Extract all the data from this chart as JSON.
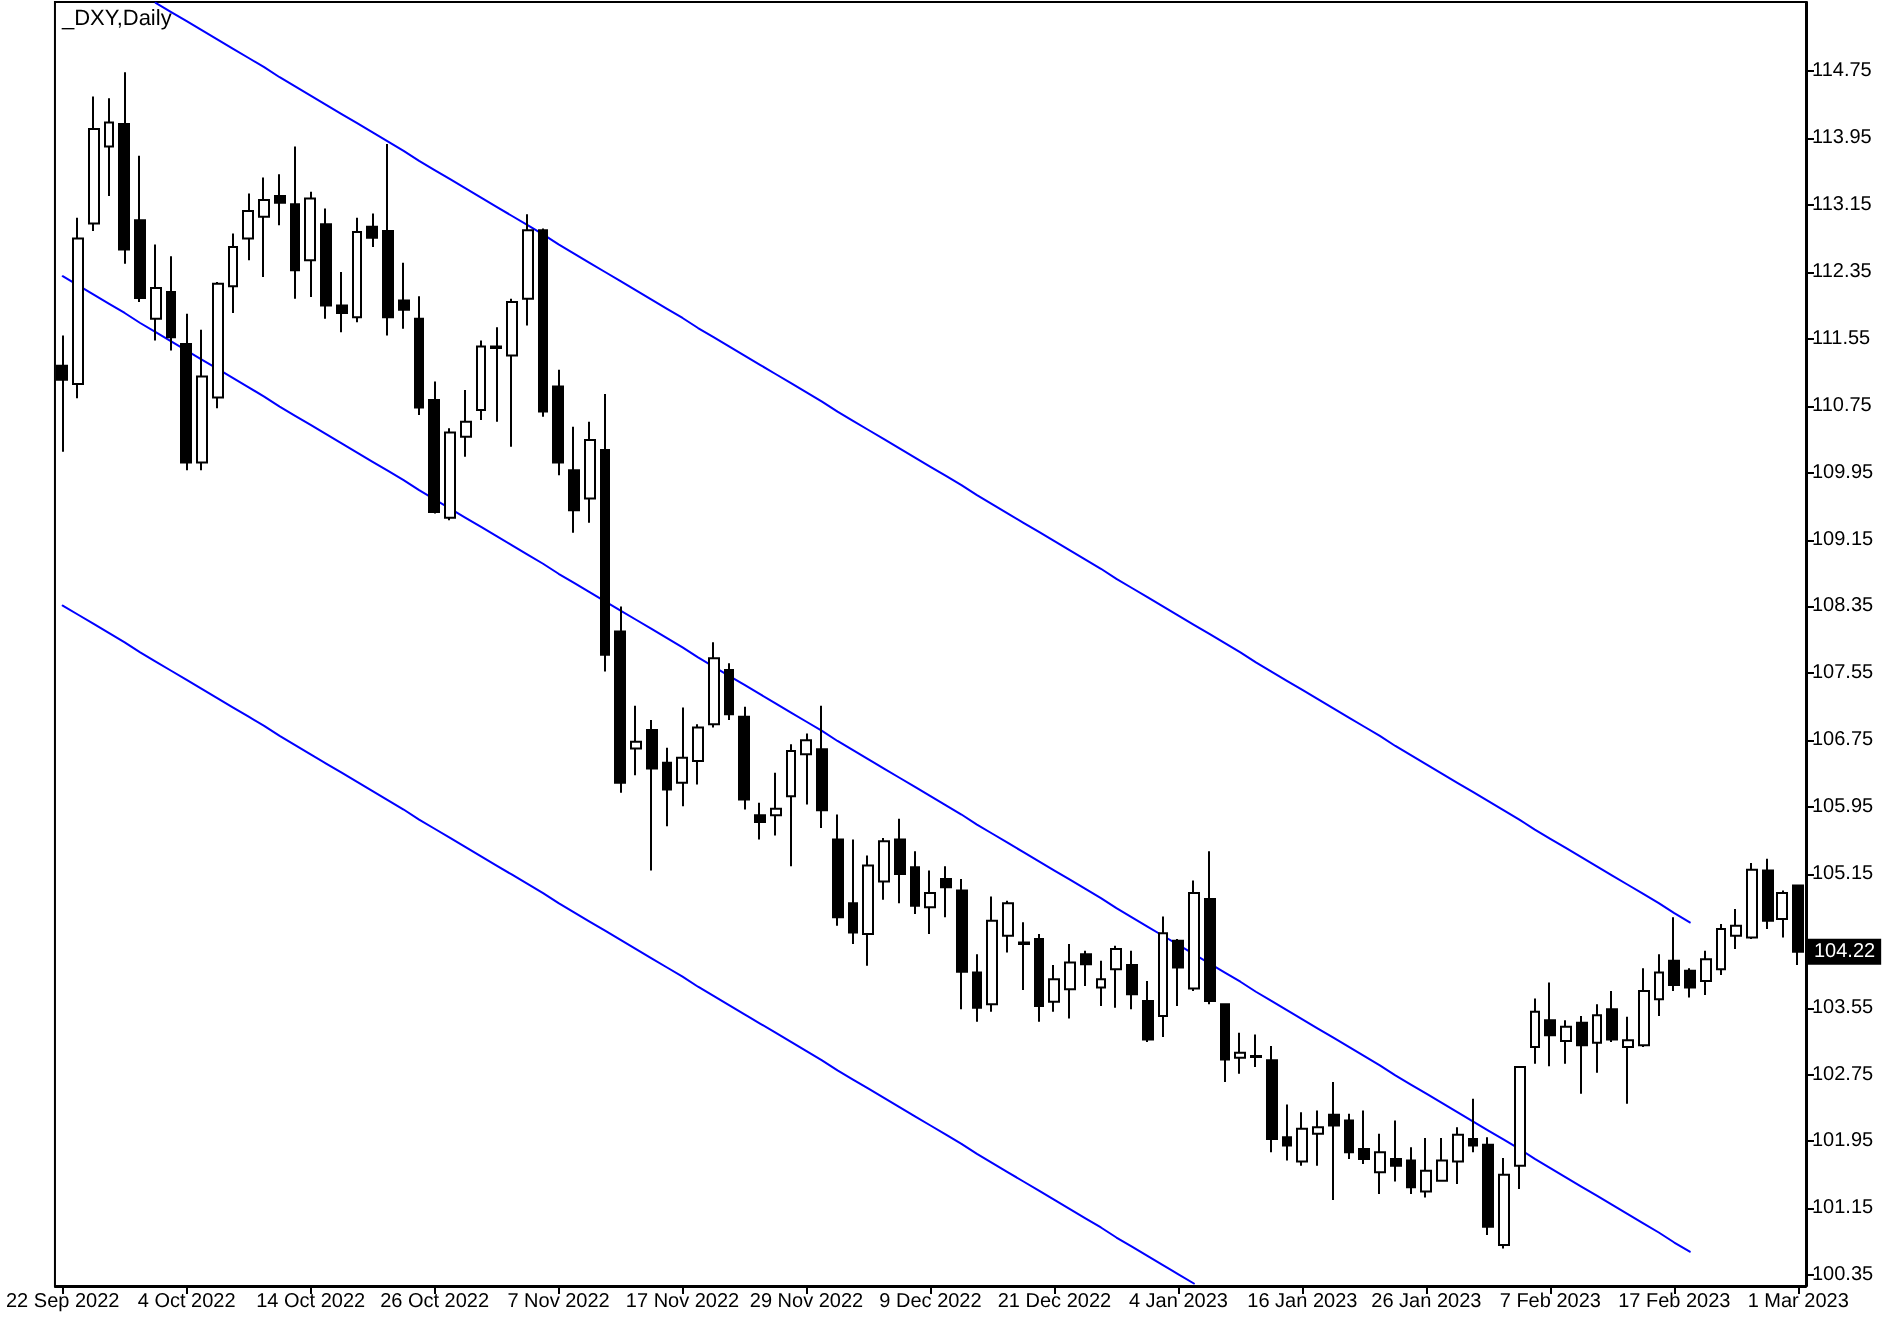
{
  "chart_data": {
    "type": "candlestick",
    "title": "_DXY,Daily",
    "categories": [
      "22 Sep 2022",
      null,
      null,
      null,
      null,
      null,
      null,
      null,
      "4 Oct 2022",
      null,
      null,
      null,
      null,
      null,
      null,
      null,
      "14 Oct 2022",
      null,
      null,
      null,
      null,
      null,
      null,
      null,
      "26 Oct 2022",
      null,
      null,
      null,
      null,
      null,
      null,
      null,
      "7 Nov 2022",
      null,
      null,
      null,
      null,
      null,
      null,
      null,
      "17 Nov 2022",
      null,
      null,
      null,
      null,
      null,
      null,
      null,
      "29 Nov 2022",
      null,
      null,
      null,
      null,
      null,
      null,
      null,
      "9 Dec 2022",
      null,
      null,
      null,
      null,
      null,
      null,
      null,
      "21 Dec 2022",
      null,
      null,
      null,
      null,
      null,
      null,
      null,
      "4 Jan 2023",
      null,
      null,
      null,
      null,
      null,
      null,
      null,
      "16 Jan 2023",
      null,
      null,
      null,
      null,
      null,
      null,
      null,
      "26 Jan 2023",
      null,
      null,
      null,
      null,
      null,
      null,
      null,
      "7 Feb 2023",
      null,
      null,
      null,
      null,
      null,
      null,
      null,
      "17 Feb 2023",
      null,
      null,
      null,
      null,
      null,
      null,
      null,
      "1 Mar 2023"
    ],
    "series": [
      {
        "color": "#000000",
        "ohlc": [
          [
            111.23,
            111.59,
            110.2,
            111.06
          ],
          [
            111.01,
            113.0,
            110.84,
            112.75
          ],
          [
            112.93,
            114.45,
            112.84,
            114.06
          ],
          [
            113.85,
            114.43,
            113.26,
            114.14
          ],
          [
            114.12,
            114.74,
            112.45,
            112.62
          ],
          [
            112.97,
            113.74,
            111.99,
            112.04
          ],
          [
            111.79,
            112.68,
            111.53,
            112.16
          ],
          [
            112.11,
            112.54,
            111.41,
            111.57
          ],
          [
            111.49,
            111.85,
            109.98,
            110.07
          ],
          [
            110.07,
            111.66,
            109.98,
            111.1
          ],
          [
            110.85,
            112.23,
            110.72,
            112.21
          ],
          [
            112.18,
            112.81,
            111.86,
            112.65
          ],
          [
            112.75,
            113.29,
            112.49,
            113.08
          ],
          [
            113.01,
            113.48,
            112.29,
            113.21
          ],
          [
            113.26,
            113.52,
            112.91,
            113.18
          ],
          [
            113.16,
            113.85,
            112.03,
            112.37
          ],
          [
            112.49,
            113.31,
            112.05,
            113.23
          ],
          [
            112.92,
            113.11,
            111.79,
            111.95
          ],
          [
            111.95,
            112.35,
            111.63,
            111.86
          ],
          [
            111.81,
            113.0,
            111.75,
            112.83
          ],
          [
            112.89,
            113.05,
            112.65,
            112.76
          ],
          [
            112.84,
            113.88,
            111.59,
            111.81
          ],
          [
            112.01,
            112.46,
            111.67,
            111.9
          ],
          [
            111.79,
            112.06,
            110.64,
            110.73
          ],
          [
            110.82,
            111.04,
            109.46,
            109.48
          ],
          [
            109.41,
            110.48,
            109.38,
            110.43
          ],
          [
            110.38,
            110.94,
            110.14,
            110.56
          ],
          [
            110.7,
            111.53,
            110.58,
            111.46
          ],
          [
            111.46,
            111.69,
            110.56,
            111.44
          ],
          [
            111.35,
            112.03,
            110.26,
            111.99
          ],
          [
            112.03,
            113.04,
            111.71,
            112.85
          ],
          [
            112.85,
            112.87,
            110.62,
            110.68
          ],
          [
            110.98,
            111.18,
            109.92,
            110.07
          ],
          [
            109.98,
            110.5,
            109.23,
            109.5
          ],
          [
            109.64,
            110.56,
            109.35,
            110.34
          ],
          [
            110.22,
            110.89,
            107.57,
            107.77
          ],
          [
            108.05,
            108.35,
            106.12,
            106.24
          ],
          [
            106.65,
            107.16,
            106.33,
            106.73
          ],
          [
            106.87,
            106.99,
            105.19,
            106.41
          ],
          [
            106.48,
            106.66,
            105.72,
            106.16
          ],
          [
            106.24,
            107.14,
            105.96,
            106.54
          ],
          [
            106.5,
            106.94,
            106.22,
            106.9
          ],
          [
            106.94,
            107.92,
            106.9,
            107.73
          ],
          [
            107.59,
            107.67,
            106.99,
            107.06
          ],
          [
            107.03,
            107.15,
            105.92,
            106.04
          ],
          [
            105.85,
            106.0,
            105.56,
            105.77
          ],
          [
            105.85,
            106.36,
            105.61,
            105.93
          ],
          [
            106.08,
            106.7,
            105.24,
            106.62
          ],
          [
            106.58,
            106.83,
            105.98,
            106.75
          ],
          [
            106.64,
            107.16,
            105.7,
            105.91
          ],
          [
            105.56,
            105.86,
            104.53,
            104.63
          ],
          [
            104.8,
            105.56,
            104.31,
            104.45
          ],
          [
            104.43,
            105.37,
            104.05,
            105.25
          ],
          [
            105.06,
            105.58,
            104.84,
            105.54
          ],
          [
            105.56,
            105.81,
            104.8,
            105.15
          ],
          [
            105.23,
            105.42,
            104.67,
            104.77
          ],
          [
            104.75,
            105.19,
            104.43,
            104.92
          ],
          [
            105.09,
            105.24,
            104.63,
            104.99
          ],
          [
            104.95,
            105.09,
            103.53,
            103.98
          ],
          [
            103.97,
            104.19,
            103.38,
            103.55
          ],
          [
            103.59,
            104.88,
            103.5,
            104.59
          ],
          [
            104.41,
            104.83,
            104.21,
            104.8
          ],
          [
            104.33,
            104.57,
            103.76,
            104.31
          ],
          [
            104.37,
            104.43,
            103.38,
            103.57
          ],
          [
            103.62,
            104.06,
            103.5,
            103.89
          ],
          [
            103.77,
            104.31,
            103.42,
            104.09
          ],
          [
            104.19,
            104.23,
            103.81,
            104.07
          ],
          [
            103.79,
            104.11,
            103.57,
            103.89
          ],
          [
            104.01,
            104.29,
            103.55,
            104.25
          ],
          [
            104.06,
            104.23,
            103.53,
            103.71
          ],
          [
            103.63,
            103.87,
            103.14,
            103.17
          ],
          [
            103.45,
            104.64,
            103.2,
            104.44
          ],
          [
            104.35,
            104.37,
            103.57,
            104.03
          ],
          [
            103.78,
            105.07,
            103.75,
            104.92
          ],
          [
            104.85,
            105.42,
            103.59,
            103.63
          ],
          [
            103.59,
            103.6,
            102.66,
            102.93
          ],
          [
            102.95,
            103.25,
            102.76,
            103.01
          ],
          [
            102.97,
            103.23,
            102.84,
            102.96
          ],
          [
            102.92,
            103.09,
            101.82,
            101.98
          ],
          [
            102.0,
            102.39,
            101.72,
            101.9
          ],
          [
            101.71,
            102.3,
            101.66,
            102.1
          ],
          [
            102.04,
            102.32,
            101.66,
            102.12
          ],
          [
            102.27,
            102.66,
            101.25,
            102.14
          ],
          [
            102.2,
            102.28,
            101.74,
            101.82
          ],
          [
            101.86,
            102.32,
            101.68,
            101.74
          ],
          [
            101.58,
            102.04,
            101.32,
            101.82
          ],
          [
            101.74,
            102.2,
            101.47,
            101.66
          ],
          [
            101.72,
            101.88,
            101.32,
            101.4
          ],
          [
            101.35,
            101.99,
            101.28,
            101.6
          ],
          [
            101.48,
            101.99,
            101.47,
            101.72
          ],
          [
            101.71,
            102.12,
            101.44,
            102.03
          ],
          [
            101.98,
            102.46,
            101.82,
            101.9
          ],
          [
            101.91,
            102.0,
            100.83,
            100.93
          ],
          [
            100.71,
            101.75,
            100.67,
            101.55
          ],
          [
            101.66,
            102.85,
            101.38,
            102.84
          ],
          [
            103.08,
            103.66,
            102.88,
            103.5
          ],
          [
            103.4,
            103.85,
            102.85,
            103.22
          ],
          [
            103.15,
            103.4,
            102.88,
            103.32
          ],
          [
            103.37,
            103.45,
            102.52,
            103.1
          ],
          [
            103.13,
            103.59,
            102.77,
            103.46
          ],
          [
            103.53,
            103.75,
            103.14,
            103.17
          ],
          [
            103.08,
            103.44,
            102.4,
            103.16
          ],
          [
            103.1,
            104.02,
            103.08,
            103.75
          ],
          [
            103.65,
            104.19,
            103.45,
            103.97
          ],
          [
            104.11,
            104.63,
            103.75,
            103.82
          ],
          [
            103.99,
            104.02,
            103.67,
            103.79
          ],
          [
            103.87,
            104.23,
            103.7,
            104.13
          ],
          [
            104.01,
            104.55,
            103.94,
            104.49
          ],
          [
            104.41,
            104.73,
            104.25,
            104.53
          ],
          [
            104.39,
            105.28,
            104.37,
            105.2
          ],
          [
            105.19,
            105.33,
            104.49,
            104.59
          ],
          [
            104.61,
            104.95,
            104.39,
            104.92
          ],
          [
            105.01,
            105.02,
            104.06,
            104.22
          ]
        ]
      },
      {
        "type": "line",
        "color": "#0000ff",
        "values": [
          null,
          null,
          null,
          null,
          null,
          null,
          115.57,
          115.46,
          115.35,
          115.24,
          115.13,
          115.02,
          114.91,
          114.8,
          114.68,
          114.57,
          114.46,
          114.35,
          114.24,
          114.13,
          114.02,
          113.91,
          113.8,
          113.68,
          113.57,
          113.46,
          113.35,
          113.24,
          113.13,
          113.02,
          112.91,
          112.8,
          112.68,
          112.57,
          112.46,
          112.35,
          112.24,
          112.13,
          112.02,
          111.91,
          111.8,
          111.68,
          111.57,
          111.46,
          111.35,
          111.24,
          111.13,
          111.02,
          110.91,
          110.8,
          110.68,
          110.57,
          110.46,
          110.35,
          110.24,
          110.13,
          110.02,
          109.91,
          109.8,
          109.68,
          109.57,
          109.46,
          109.35,
          109.24,
          109.13,
          109.02,
          108.91,
          108.8,
          108.68,
          108.57,
          108.46,
          108.35,
          108.24,
          108.13,
          108.02,
          107.91,
          107.8,
          107.68,
          107.57,
          107.46,
          107.35,
          107.24,
          107.13,
          107.02,
          106.91,
          106.8,
          106.68,
          106.57,
          106.46,
          106.35,
          106.24,
          106.13,
          106.02,
          105.91,
          105.8,
          105.68,
          105.57,
          105.46,
          105.35,
          105.24,
          105.13,
          105.02,
          104.91,
          104.8,
          104.68,
          104.57,
          null,
          null,
          null,
          null,
          null,
          null,
          null
        ]
      },
      {
        "type": "line",
        "color": "#0000ff",
        "values": [
          112.3,
          112.19,
          112.08,
          111.97,
          111.86,
          111.74,
          111.63,
          111.52,
          111.41,
          111.3,
          111.19,
          111.08,
          110.97,
          110.86,
          110.74,
          110.63,
          110.52,
          110.41,
          110.3,
          110.19,
          110.08,
          109.97,
          109.86,
          109.74,
          109.63,
          109.52,
          109.41,
          109.3,
          109.19,
          109.08,
          108.97,
          108.86,
          108.74,
          108.63,
          108.52,
          108.41,
          108.3,
          108.19,
          108.08,
          107.97,
          107.86,
          107.74,
          107.63,
          107.52,
          107.41,
          107.3,
          107.19,
          107.08,
          106.97,
          106.86,
          106.74,
          106.63,
          106.52,
          106.41,
          106.3,
          106.19,
          106.08,
          105.97,
          105.86,
          105.74,
          105.63,
          105.52,
          105.41,
          105.3,
          105.19,
          105.08,
          104.97,
          104.86,
          104.74,
          104.63,
          104.52,
          104.41,
          104.3,
          104.19,
          104.08,
          103.97,
          103.86,
          103.74,
          103.63,
          103.52,
          103.41,
          103.3,
          103.19,
          103.08,
          102.97,
          102.86,
          102.74,
          102.63,
          102.52,
          102.41,
          102.3,
          102.19,
          102.08,
          101.97,
          101.86,
          101.74,
          101.63,
          101.52,
          101.41,
          101.3,
          101.19,
          101.08,
          100.97,
          100.86,
          100.74,
          100.63,
          null,
          null,
          null,
          null,
          null,
          null,
          null
        ]
      },
      {
        "type": "line",
        "color": "#0000ff",
        "values": [
          108.36,
          108.25,
          108.14,
          108.03,
          107.92,
          107.8,
          107.69,
          107.58,
          107.47,
          107.36,
          107.25,
          107.14,
          107.03,
          106.92,
          106.8,
          106.69,
          106.58,
          106.47,
          106.36,
          106.25,
          106.14,
          106.03,
          105.92,
          105.8,
          105.69,
          105.58,
          105.47,
          105.36,
          105.25,
          105.14,
          105.03,
          104.92,
          104.8,
          104.69,
          104.58,
          104.47,
          104.36,
          104.25,
          104.14,
          104.03,
          103.92,
          103.8,
          103.69,
          103.58,
          103.47,
          103.36,
          103.25,
          103.14,
          103.03,
          102.92,
          102.8,
          102.69,
          102.58,
          102.47,
          102.36,
          102.25,
          102.14,
          102.03,
          101.92,
          101.8,
          101.69,
          101.58,
          101.47,
          101.36,
          101.25,
          101.14,
          101.03,
          100.92,
          100.8,
          100.69,
          100.58,
          100.47,
          100.36,
          100.25,
          null,
          null,
          null,
          null,
          null,
          null,
          null,
          null,
          null,
          null,
          null,
          null,
          null,
          null,
          null,
          null,
          null,
          null,
          null,
          null,
          null,
          null,
          null,
          null,
          null,
          null,
          null,
          null,
          null,
          null,
          null,
          null,
          null,
          null,
          null,
          null,
          null,
          null,
          null
        ]
      }
    ],
    "ylim": [
      100.22,
      115.58
    ],
    "yticks": [
      100.35,
      101.15,
      101.95,
      102.75,
      103.55,
      {
        "value": 104.35,
        "label": null
      },
      105.15,
      105.95,
      106.75,
      107.55,
      108.35,
      109.15,
      109.95,
      110.75,
      111.55,
      112.35,
      113.15,
      113.95,
      114.75
    ],
    "annotations": [
      {
        "text": "104.22",
        "y": 104.22
      }
    ],
    "grid": false,
    "marker": "none",
    "line_style": "solid"
  }
}
